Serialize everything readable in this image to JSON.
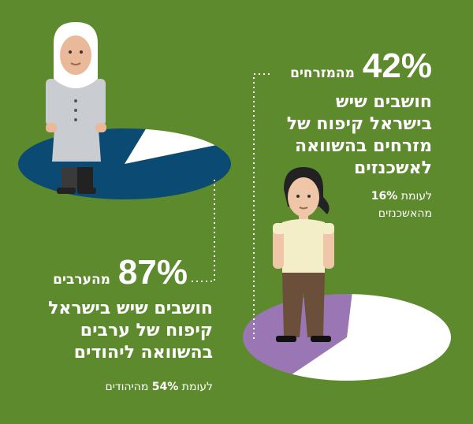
{
  "colors": {
    "background": "#5e8a2e",
    "pie_remainder": "#ffffff",
    "pie_arabs": "#0b4a73",
    "pie_mizrahim": "#9a76b4",
    "dotted_line": "#ffffff"
  },
  "chart_data": [
    {
      "type": "pie",
      "id": "arabs",
      "slices": [
        {
          "label": "חושבים שיש בישראל קיפוח של ערבים בהשוואה ליהודים",
          "value": 87
        },
        {
          "label": "",
          "value": 13
        }
      ],
      "comparison": {
        "text": "מהיהודים",
        "value": 54
      }
    },
    {
      "type": "pie",
      "id": "mizrahim",
      "slices": [
        {
          "label": "חושבים שיש בישראל קיפוח של מזרחים בהשוואה לאשכנזים",
          "value": 42
        },
        {
          "label": "",
          "value": 58
        }
      ],
      "comparison": {
        "text": "מהאשכנזים",
        "value": 16
      }
    }
  ],
  "labels": {
    "mizrahim": {
      "percent": "42%",
      "group": "מהמזרחים",
      "desc_lines": [
        "חושבים שיש",
        "בישראל קיפוח של",
        "מזרחים בהשוואה",
        "לאשכנזים"
      ],
      "cmp_prefix": "לעומת",
      "cmp_value": "16%",
      "cmp_group": "מהאשכנזים"
    },
    "arabs": {
      "percent": "87%",
      "group": "מהערבים",
      "desc_lines": [
        "חושבים שיש בישראל",
        "קיפוח של ערבים",
        "בהשוואה ליהודים"
      ],
      "cmp_prefix": "לעומת",
      "cmp_value": "54%",
      "cmp_group": "מהיהודים"
    }
  },
  "icons": [
    "arab-woman-figure-icon",
    "mizrahi-woman-figure-icon"
  ]
}
